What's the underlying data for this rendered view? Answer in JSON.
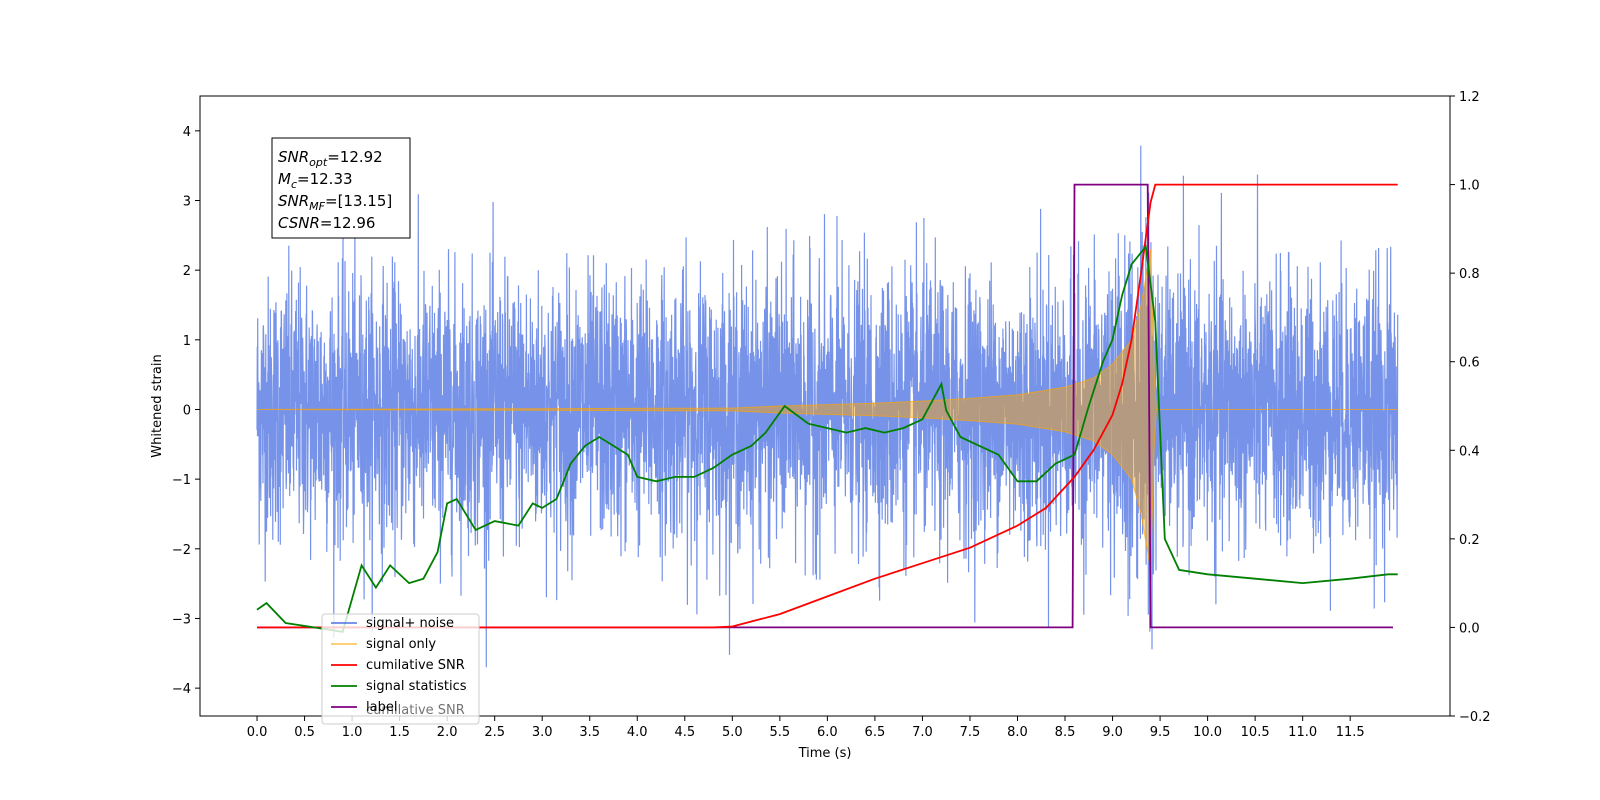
{
  "chart_data": {
    "type": "line",
    "title": "",
    "xlabel": "Time (s)",
    "ylabel": "Whitened strain",
    "ylabel_right": "",
    "xlim": [
      -0.6,
      12.55
    ],
    "ylim": [
      -4.4,
      4.5
    ],
    "ylim_right": [
      -0.2,
      1.2
    ],
    "x_ticks": [
      0.0,
      0.5,
      1.0,
      1.5,
      2.0,
      2.5,
      3.0,
      3.5,
      4.0,
      4.5,
      5.0,
      5.5,
      6.0,
      6.5,
      7.0,
      7.5,
      8.0,
      8.5,
      9.0,
      9.5,
      10.0,
      10.5,
      11.0,
      11.5
    ],
    "x_tick_labels": [
      "0.0",
      "0.5",
      "1.0",
      "1.5",
      "2.0",
      "2.5",
      "3.0",
      "3.5",
      "4.0",
      "4.5",
      "5.0",
      "5.5",
      "6.0",
      "6.5",
      "7.0",
      "7.5",
      "8.0",
      "8.5",
      "9.0",
      "9.5",
      "10.0",
      "10.5",
      "11.0",
      "11.5"
    ],
    "y_ticks": [
      4,
      3,
      2,
      1,
      0,
      -1,
      -2,
      -3,
      -4
    ],
    "y_tick_labels": [
      "4",
      "3",
      "2",
      "1",
      "0",
      "−1",
      "−2",
      "−3",
      "−4"
    ],
    "y_ticks_right": [
      1.2,
      1.0,
      0.8,
      0.6,
      0.4,
      0.2,
      0.0,
      -0.2
    ],
    "y_tick_labels_right": [
      "1.2",
      "1.0",
      "0.8",
      "0.6",
      "0.4",
      "0.2",
      "0.0",
      "−0.2"
    ],
    "grid": false,
    "legend_position": "lower-left",
    "annotation": [
      {
        "base": "SNR",
        "sub": "opt",
        "value": "=12.92"
      },
      {
        "base": "M",
        "sub": "c",
        "value": "=12.33"
      },
      {
        "base": "SNR",
        "sub": "MF",
        "value": "=[13.15]"
      },
      {
        "base": "CSNR",
        "sub": "",
        "value": "=12.96"
      }
    ],
    "series": [
      {
        "name": "signal+ noise",
        "axis": "left",
        "color": "#4169e1",
        "x_range": [
          0.0,
          12.0
        ],
        "envelope_typical": [
          -1.6,
          1.6
        ],
        "envelope_peaks": [
          -3.7,
          4.1
        ]
      },
      {
        "name": "signal only",
        "axis": "left",
        "color": "#ffa500",
        "x": [
          0.0,
          5.0,
          5.5,
          6.0,
          6.5,
          7.0,
          7.5,
          8.0,
          8.5,
          8.8,
          9.0,
          9.2,
          9.3,
          9.4,
          9.45,
          12.0
        ],
        "amplitude": [
          0.0,
          0.02,
          0.05,
          0.07,
          0.09,
          0.12,
          0.16,
          0.21,
          0.32,
          0.45,
          0.65,
          1.0,
          1.5,
          2.3,
          0.0,
          0.0
        ]
      },
      {
        "name": "cumilative SNR",
        "axis": "right",
        "color": "#ff0000",
        "x": [
          0.0,
          4.8,
          5.0,
          5.5,
          6.0,
          6.5,
          7.0,
          7.5,
          8.0,
          8.3,
          8.6,
          8.8,
          9.0,
          9.1,
          9.2,
          9.3,
          9.35,
          9.4,
          9.45,
          12.0
        ],
        "y": [
          0.0,
          0.0,
          0.002,
          0.03,
          0.07,
          0.11,
          0.145,
          0.18,
          0.23,
          0.27,
          0.34,
          0.4,
          0.48,
          0.55,
          0.65,
          0.8,
          0.88,
          0.96,
          1.0,
          1.0
        ]
      },
      {
        "name": "signal statistics",
        "axis": "right",
        "color": "#008000",
        "x": [
          0.0,
          0.1,
          0.3,
          0.6,
          0.9,
          1.1,
          1.25,
          1.4,
          1.6,
          1.75,
          1.9,
          2.0,
          2.1,
          2.3,
          2.5,
          2.75,
          2.9,
          3.0,
          3.15,
          3.3,
          3.45,
          3.6,
          3.9,
          4.0,
          4.2,
          4.4,
          4.6,
          4.8,
          5.0,
          5.2,
          5.35,
          5.55,
          5.8,
          6.0,
          6.2,
          6.4,
          6.6,
          6.8,
          7.0,
          7.2,
          7.25,
          7.4,
          7.6,
          7.8,
          8.0,
          8.2,
          8.4,
          8.6,
          8.75,
          8.9,
          9.0,
          9.1,
          9.2,
          9.35,
          9.45,
          9.55,
          9.7,
          10.0,
          10.5,
          11.0,
          11.5,
          11.9,
          12.0
        ],
        "y": [
          0.04,
          0.055,
          0.01,
          0.0,
          -0.01,
          0.14,
          0.09,
          0.14,
          0.1,
          0.11,
          0.17,
          0.28,
          0.29,
          0.22,
          0.24,
          0.23,
          0.28,
          0.27,
          0.29,
          0.37,
          0.41,
          0.43,
          0.39,
          0.34,
          0.33,
          0.34,
          0.34,
          0.36,
          0.39,
          0.41,
          0.44,
          0.5,
          0.46,
          0.45,
          0.44,
          0.45,
          0.44,
          0.45,
          0.47,
          0.55,
          0.49,
          0.43,
          0.41,
          0.39,
          0.33,
          0.33,
          0.37,
          0.39,
          0.5,
          0.6,
          0.65,
          0.75,
          0.82,
          0.86,
          0.69,
          0.2,
          0.13,
          0.12,
          0.11,
          0.1,
          0.11,
          0.12,
          0.12
        ]
      },
      {
        "name": "label",
        "axis": "right",
        "color": "#800080",
        "x": [
          0.0,
          8.58,
          8.6,
          9.37,
          9.4,
          11.95
        ],
        "y": [
          0.0,
          0.0,
          1.0,
          1.0,
          0.0,
          0.0
        ]
      }
    ],
    "legend_entries": [
      "signal+ noise",
      "signal only",
      "cumilative SNR",
      "signal statistics",
      "label"
    ],
    "legend_hidden_text": "cumilative SNR"
  }
}
